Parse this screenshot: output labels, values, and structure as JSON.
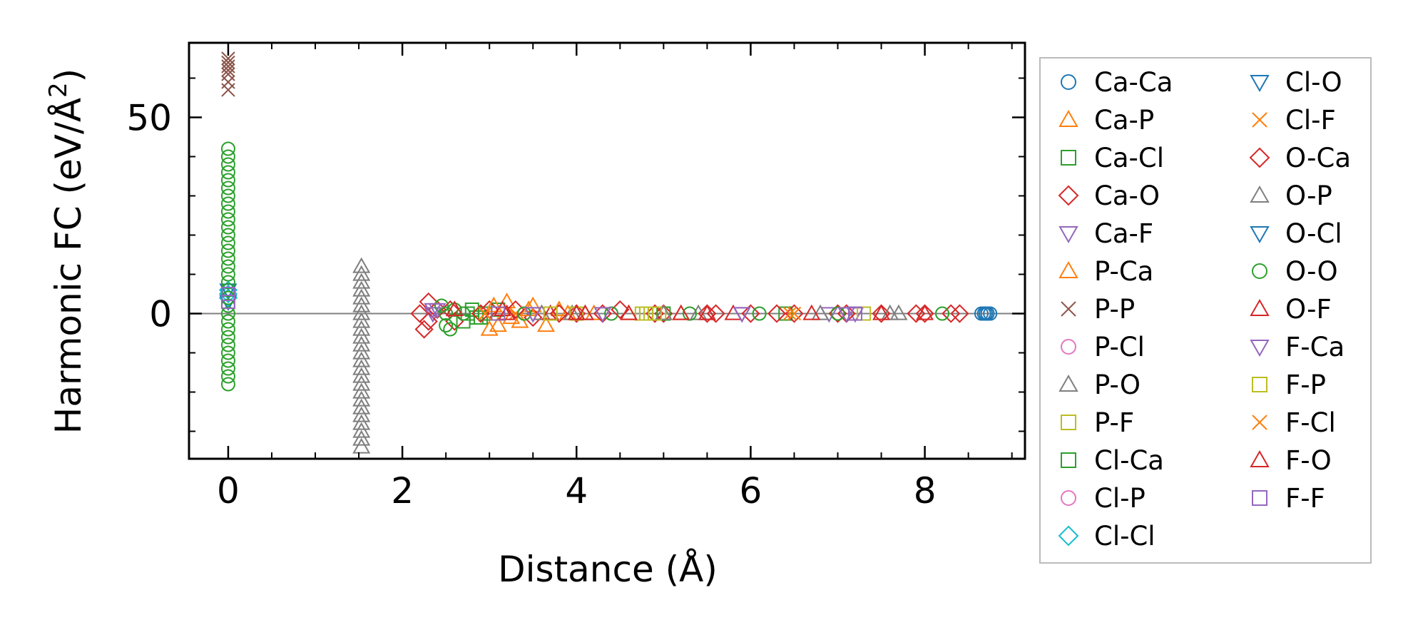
{
  "chart_data": {
    "type": "scatter",
    "xlabel": "Distance (Å)",
    "ylabel": "Harmonic FC (eV/Å",
    "ylabel_sup": "2",
    "ylabel_end": ")",
    "xlim": [
      -0.45,
      9.15
    ],
    "ylim": [
      -37,
      69
    ],
    "xticks": [
      0,
      2,
      4,
      6,
      8
    ],
    "xtick_labels": [
      "0",
      "2",
      "4",
      "6",
      "8"
    ],
    "yticks": [
      0,
      50
    ],
    "ytick_labels": [
      "0",
      "50"
    ],
    "x_minor_step": 0.5,
    "y_minor_step": 10,
    "zero_line": true,
    "grid": false,
    "legend_placement": "outside-right",
    "legend_columns": 2,
    "series": [
      {
        "name": "Ca-Ca",
        "marker": "circle",
        "color": "#1f77b4",
        "points": [
          [
            8.65,
            0
          ],
          [
            8.68,
            0
          ],
          [
            8.7,
            0
          ],
          [
            8.72,
            0
          ],
          [
            8.75,
            0
          ]
        ]
      },
      {
        "name": "Ca-P",
        "marker": "triangle-up",
        "color": "#ff7f0e",
        "points": [
          [
            3.0,
            -4
          ],
          [
            3.1,
            -3
          ],
          [
            3.2,
            3
          ],
          [
            3.35,
            -2
          ],
          [
            3.5,
            2
          ],
          [
            3.65,
            -3
          ],
          [
            3.8,
            1
          ],
          [
            3.9,
            0
          ],
          [
            4.2,
            0
          ],
          [
            4.6,
            0
          ]
        ]
      },
      {
        "name": "Ca-Cl",
        "marker": "square",
        "color": "#2ca02c",
        "points": [
          [
            2.7,
            -2
          ],
          [
            2.8,
            1
          ],
          [
            2.85,
            -1
          ],
          [
            2.95,
            0
          ],
          [
            3.1,
            1
          ],
          [
            4.8,
            0
          ],
          [
            6.4,
            0
          ]
        ]
      },
      {
        "name": "Ca-O",
        "marker": "diamond",
        "color": "#d62728",
        "points": [
          [
            2.2,
            0
          ],
          [
            2.25,
            -4
          ],
          [
            2.3,
            3
          ],
          [
            2.4,
            1
          ],
          [
            2.6,
            -2
          ],
          [
            3.0,
            1
          ],
          [
            3.5,
            -1
          ],
          [
            4.0,
            0
          ],
          [
            4.5,
            1
          ],
          [
            5.0,
            0
          ],
          [
            5.5,
            0
          ],
          [
            6.0,
            0
          ],
          [
            6.5,
            0
          ],
          [
            7.0,
            0
          ],
          [
            7.5,
            0
          ],
          [
            8.0,
            0
          ],
          [
            8.3,
            0
          ]
        ]
      },
      {
        "name": "Ca-F",
        "marker": "triangle-down",
        "color": "#9467bd",
        "points": [
          [
            2.35,
            0
          ],
          [
            2.4,
            1
          ],
          [
            3.5,
            0
          ],
          [
            5.9,
            0
          ],
          [
            6.9,
            0
          ],
          [
            7.2,
            0
          ]
        ]
      },
      {
        "name": "P-Ca",
        "marker": "triangle-up",
        "color": "#ff7f0e",
        "points": [
          [
            3.05,
            2
          ],
          [
            3.25,
            -1
          ],
          [
            3.45,
            1
          ],
          [
            3.6,
            0
          ],
          [
            5.2,
            0
          ]
        ]
      },
      {
        "name": "P-P",
        "marker": "x",
        "color": "#8c564b",
        "points": [
          [
            0,
            57
          ],
          [
            0,
            59
          ],
          [
            0,
            61
          ],
          [
            0,
            62
          ],
          [
            0,
            63
          ],
          [
            0,
            64
          ],
          [
            0,
            65
          ]
        ]
      },
      {
        "name": "P-Cl",
        "marker": "circle",
        "color": "#e377c2",
        "points": []
      },
      {
        "name": "P-O",
        "marker": "triangle-up",
        "color": "#7f7f7f",
        "points": [
          [
            1.53,
            12
          ],
          [
            1.53,
            10
          ],
          [
            1.53,
            8
          ],
          [
            1.53,
            6
          ],
          [
            1.53,
            4
          ],
          [
            1.53,
            2
          ],
          [
            1.53,
            0
          ],
          [
            1.53,
            -2
          ],
          [
            1.53,
            -4
          ],
          [
            1.53,
            -6
          ],
          [
            1.53,
            -8
          ],
          [
            1.53,
            -10
          ],
          [
            1.53,
            -12
          ],
          [
            1.53,
            -14
          ],
          [
            1.53,
            -16
          ],
          [
            1.53,
            -18
          ],
          [
            1.53,
            -20
          ],
          [
            1.53,
            -22
          ],
          [
            1.53,
            -24
          ],
          [
            1.53,
            -26
          ],
          [
            1.53,
            -28
          ],
          [
            1.53,
            -30
          ],
          [
            1.53,
            -32
          ],
          [
            1.53,
            -34
          ],
          [
            3.95,
            0
          ],
          [
            5.4,
            0
          ],
          [
            7.6,
            0
          ]
        ]
      },
      {
        "name": "P-F",
        "marker": "square",
        "color": "#bcbd22",
        "points": [
          [
            3.7,
            0
          ],
          [
            4.0,
            0
          ],
          [
            4.75,
            0
          ],
          [
            4.85,
            0
          ],
          [
            4.95,
            0
          ],
          [
            7.3,
            0
          ]
        ]
      },
      {
        "name": "Cl-Ca",
        "marker": "square",
        "color": "#2ca02c",
        "points": [
          [
            2.75,
            0
          ],
          [
            2.9,
            -1
          ],
          [
            5.0,
            0
          ]
        ]
      },
      {
        "name": "Cl-P",
        "marker": "circle",
        "color": "#e377c2",
        "points": []
      },
      {
        "name": "Cl-Cl",
        "marker": "diamond",
        "color": "#17becf",
        "points": [
          [
            0,
            4
          ],
          [
            0,
            5
          ],
          [
            0,
            6
          ]
        ]
      },
      {
        "name": "Cl-O",
        "marker": "triangle-down",
        "color": "#1f77b4",
        "points": [
          [
            0,
            6
          ],
          [
            0,
            3
          ]
        ]
      },
      {
        "name": "Cl-F",
        "marker": "x",
        "color": "#ff7f0e",
        "points": [
          [
            2.95,
            0
          ],
          [
            3.3,
            0
          ],
          [
            6.45,
            0
          ]
        ]
      },
      {
        "name": "O-Ca",
        "marker": "diamond",
        "color": "#d62728",
        "points": [
          [
            2.3,
            -2
          ],
          [
            2.55,
            1
          ],
          [
            2.9,
            0
          ],
          [
            3.3,
            1
          ],
          [
            3.8,
            0
          ],
          [
            4.3,
            0
          ],
          [
            4.9,
            0
          ],
          [
            5.6,
            0
          ],
          [
            6.3,
            0
          ],
          [
            7.1,
            0
          ],
          [
            7.9,
            0
          ],
          [
            8.4,
            0
          ]
        ]
      },
      {
        "name": "O-P",
        "marker": "triangle-up",
        "color": "#7f7f7f",
        "points": [
          [
            3.6,
            0
          ],
          [
            4.1,
            0
          ],
          [
            5.0,
            0
          ],
          [
            6.8,
            0
          ],
          [
            7.7,
            0
          ]
        ]
      },
      {
        "name": "O-Cl",
        "marker": "triangle-down",
        "color": "#1f77b4",
        "points": []
      },
      {
        "name": "O-O",
        "marker": "circle",
        "color": "#2ca02c",
        "points": [
          [
            0,
            42
          ],
          [
            0,
            40
          ],
          [
            0,
            38
          ],
          [
            0,
            36
          ],
          [
            0,
            34
          ],
          [
            0,
            32
          ],
          [
            0,
            30
          ],
          [
            0,
            28
          ],
          [
            0,
            26
          ],
          [
            0,
            24
          ],
          [
            0,
            22
          ],
          [
            0,
            20
          ],
          [
            0,
            18
          ],
          [
            0,
            16
          ],
          [
            0,
            14
          ],
          [
            0,
            12
          ],
          [
            0,
            10
          ],
          [
            0,
            8
          ],
          [
            0,
            6
          ],
          [
            0,
            4
          ],
          [
            0,
            2
          ],
          [
            0,
            0
          ],
          [
            0,
            -2
          ],
          [
            0,
            -4
          ],
          [
            0,
            -6
          ],
          [
            0,
            -8
          ],
          [
            0,
            -10
          ],
          [
            0,
            -12
          ],
          [
            0,
            -14
          ],
          [
            0,
            -16
          ],
          [
            0,
            -18
          ],
          [
            2.45,
            2
          ],
          [
            2.5,
            -3
          ],
          [
            2.5,
            0
          ],
          [
            2.55,
            -4
          ],
          [
            2.6,
            1
          ],
          [
            2.7,
            0
          ],
          [
            3.4,
            0
          ],
          [
            4.4,
            0
          ],
          [
            5.3,
            0
          ],
          [
            6.1,
            0
          ],
          [
            7.0,
            0
          ],
          [
            8.2,
            0
          ]
        ]
      },
      {
        "name": "O-F",
        "marker": "triangle-up",
        "color": "#d62728",
        "points": [
          [
            2.6,
            1
          ],
          [
            3.15,
            1
          ],
          [
            3.7,
            0
          ],
          [
            4.1,
            0
          ],
          [
            4.6,
            0
          ],
          [
            5.2,
            0
          ],
          [
            5.8,
            0
          ],
          [
            6.7,
            0
          ],
          [
            7.5,
            0
          ],
          [
            8.0,
            0
          ]
        ]
      },
      {
        "name": "F-Ca",
        "marker": "triangle-down",
        "color": "#9467bd",
        "points": [
          [
            2.35,
            1
          ],
          [
            3.5,
            0
          ],
          [
            4.3,
            0
          ],
          [
            5.9,
            0
          ],
          [
            7.1,
            0
          ]
        ]
      },
      {
        "name": "F-P",
        "marker": "square",
        "color": "#bcbd22",
        "points": [
          [
            3.7,
            0
          ],
          [
            4.8,
            0
          ],
          [
            4.9,
            0
          ]
        ]
      },
      {
        "name": "F-Cl",
        "marker": "x",
        "color": "#ff7f0e",
        "points": [
          [
            2.95,
            0
          ],
          [
            6.5,
            0
          ]
        ]
      },
      {
        "name": "F-O",
        "marker": "triangle-up",
        "color": "#d62728",
        "points": [
          [
            3.2,
            0
          ],
          [
            4.0,
            0
          ],
          [
            5.5,
            0
          ]
        ]
      },
      {
        "name": "F-F",
        "marker": "square",
        "color": "#9467bd",
        "points": [
          [
            0,
            3
          ],
          [
            0,
            5
          ],
          [
            3.1,
            0
          ],
          [
            7.2,
            0
          ]
        ]
      }
    ]
  }
}
